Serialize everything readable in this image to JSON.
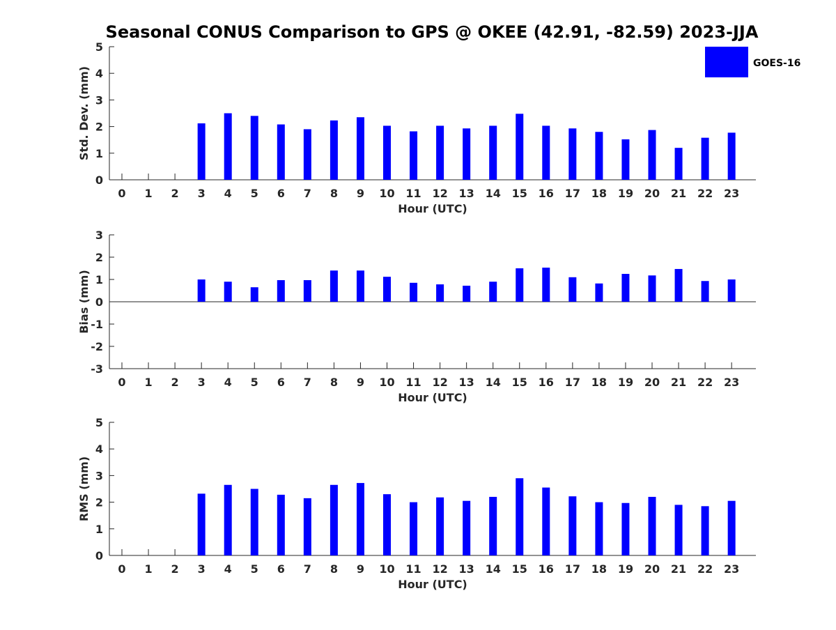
{
  "chart_data": {
    "type": "bar",
    "title": "Seasonal CONUS Comparison to GPS @ OKEE (42.91, -82.59) 2023-JJA",
    "legend": {
      "label": "GOES-16",
      "color": "#0000ff",
      "position": "top-right"
    },
    "bar_color": "#0000ff",
    "categories": [
      "0",
      "1",
      "2",
      "3",
      "4",
      "5",
      "6",
      "7",
      "8",
      "9",
      "10",
      "11",
      "12",
      "13",
      "14",
      "15",
      "16",
      "17",
      "18",
      "19",
      "20",
      "21",
      "22",
      "23"
    ],
    "panels": [
      {
        "name": "std-dev",
        "ylabel": "Std. Dev. (mm)",
        "xlabel": "Hour (UTC)",
        "ylim": [
          0,
          5
        ],
        "yticks": [
          "0",
          "1",
          "2",
          "3",
          "4",
          "5"
        ],
        "values": [
          null,
          null,
          null,
          2.12,
          2.5,
          2.4,
          2.08,
          1.9,
          2.23,
          2.35,
          2.03,
          1.82,
          2.03,
          1.93,
          2.03,
          2.48,
          2.03,
          1.93,
          1.8,
          1.52,
          1.87,
          1.2,
          1.58,
          1.77
        ]
      },
      {
        "name": "bias",
        "ylabel": "Bias (mm)",
        "xlabel": "Hour (UTC)",
        "ylim": [
          -3,
          3
        ],
        "yticks": [
          "-3",
          "-2",
          "-1",
          "0",
          "1",
          "2",
          "3"
        ],
        "values": [
          null,
          null,
          null,
          1.0,
          0.9,
          0.65,
          0.97,
          0.97,
          1.4,
          1.4,
          1.12,
          0.85,
          0.78,
          0.72,
          0.9,
          1.5,
          1.53,
          1.1,
          0.82,
          1.25,
          1.18,
          1.47,
          0.93,
          1.0
        ]
      },
      {
        "name": "rms",
        "ylabel": "RMS (mm)",
        "xlabel": "Hour (UTC)",
        "ylim": [
          0,
          5
        ],
        "yticks": [
          "0",
          "1",
          "2",
          "3",
          "4",
          "5"
        ],
        "values": [
          null,
          null,
          null,
          2.32,
          2.65,
          2.5,
          2.28,
          2.15,
          2.65,
          2.72,
          2.3,
          2.0,
          2.18,
          2.05,
          2.2,
          2.9,
          2.55,
          2.22,
          2.0,
          1.97,
          2.2,
          1.9,
          1.85,
          2.05
        ]
      }
    ]
  }
}
